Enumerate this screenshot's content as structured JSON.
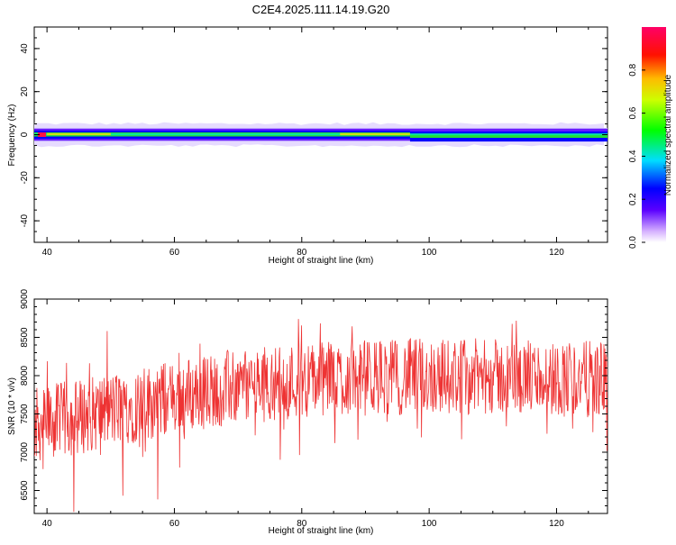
{
  "title": "C2E4.2025.111.14.19.G20",
  "colors": {
    "snr_line": "#ee3333",
    "band_core": "#22dd33",
    "band_inner": "#0000ff",
    "band_halo": "#c9b3ff",
    "axis": "#000000"
  },
  "chart_data": [
    {
      "type": "heatmap",
      "xlabel": "Height of straight line (km)",
      "ylabel": "Frequency (Hz)",
      "xlim": [
        38,
        128
      ],
      "ylim": [
        -50,
        50
      ],
      "xticks": [
        40,
        60,
        80,
        100,
        120
      ],
      "yticks": [
        -40,
        -20,
        0,
        20,
        40
      ],
      "colorbar": {
        "label": "Normalized spectral amplitude",
        "ticks": [
          0.0,
          0.2,
          0.4,
          0.6,
          0.8
        ],
        "range": [
          0,
          1
        ],
        "colormap": "rainbow"
      },
      "band": {
        "center_hz": 0,
        "core_halfwidth_hz": 1.5,
        "outer_halfwidth_hz": 4.5,
        "peak_x_km": 39,
        "bright_spans_km": [
          [
            40,
            50
          ],
          [
            86,
            97
          ]
        ],
        "shift_after_km": 97
      },
      "grid": false
    },
    {
      "type": "line",
      "xlabel": "Height of straight line (km)",
      "ylabel": "SNR (10 * v/v)",
      "xlim": [
        38,
        128
      ],
      "ylim": [
        6200,
        9000
      ],
      "xticks": [
        40,
        60,
        80,
        100,
        120
      ],
      "yticks": [
        6500,
        7000,
        7500,
        8000,
        8500,
        9000
      ],
      "series": [
        {
          "x_start_km": 38,
          "x_end_km": 128,
          "trend": [
            [
              38,
              7350
            ],
            [
              50,
              7550
            ],
            [
              65,
              7800
            ],
            [
              80,
              7950
            ],
            [
              100,
              8000
            ],
            [
              128,
              7950
            ]
          ],
          "amplitude": 500
        }
      ],
      "grid": false
    }
  ]
}
